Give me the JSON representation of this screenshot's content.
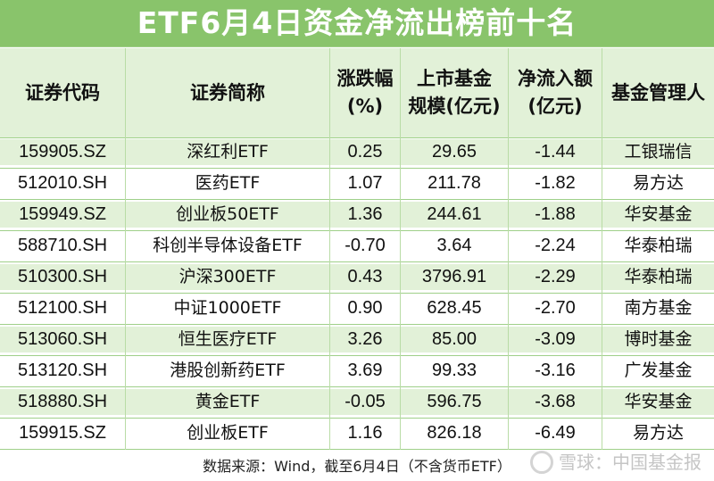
{
  "title": "ETF6月4日资金净流出榜前十名",
  "headers": {
    "code": "证券代码",
    "name": "证券简称",
    "change_line1": "涨跌幅",
    "change_line2": "(%)",
    "scale_line1": "上市基金",
    "scale_line2": "规模(亿元)",
    "flow_line1": "净流入额",
    "flow_line2": "(亿元)",
    "manager": "基金管理人"
  },
  "rows": [
    {
      "code": "159905.SZ",
      "name": "深红利ETF",
      "change": "0.25",
      "scale": "29.65",
      "flow": "-1.44",
      "manager": "工银瑞信"
    },
    {
      "code": "512010.SH",
      "name": "医药ETF",
      "change": "1.07",
      "scale": "211.78",
      "flow": "-1.82",
      "manager": "易方达"
    },
    {
      "code": "159949.SZ",
      "name": "创业板50ETF",
      "change": "1.36",
      "scale": "244.61",
      "flow": "-1.88",
      "manager": "华安基金"
    },
    {
      "code": "588710.SH",
      "name": "科创半导体设备ETF",
      "change": "-0.70",
      "scale": "3.64",
      "flow": "-2.24",
      "manager": "华泰柏瑞"
    },
    {
      "code": "510300.SH",
      "name": "沪深300ETF",
      "change": "0.43",
      "scale": "3796.91",
      "flow": "-2.29",
      "manager": "华泰柏瑞"
    },
    {
      "code": "512100.SH",
      "name": "中证1000ETF",
      "change": "0.90",
      "scale": "628.45",
      "flow": "-2.70",
      "manager": "南方基金"
    },
    {
      "code": "513060.SH",
      "name": "恒生医疗ETF",
      "change": "3.26",
      "scale": "85.00",
      "flow": "-3.09",
      "manager": "博时基金"
    },
    {
      "code": "513120.SH",
      "name": "港股创新药ETF",
      "change": "3.69",
      "scale": "99.33",
      "flow": "-3.16",
      "manager": "广发基金"
    },
    {
      "code": "518880.SH",
      "name": "黄金ETF",
      "change": "-0.05",
      "scale": "596.75",
      "flow": "-3.68",
      "manager": "华安基金"
    },
    {
      "code": "159915.SZ",
      "name": "创业板ETF",
      "change": "1.16",
      "scale": "826.18",
      "flow": "-6.49",
      "manager": "易方达"
    }
  ],
  "footer": "数据来源：Wind，截至6月4日（不含货币ETF）",
  "watermark": "雪球：中国基金报",
  "colors": {
    "title_bg": "#89c46b",
    "stripe": "#e2f1d8",
    "text": "#111111"
  }
}
